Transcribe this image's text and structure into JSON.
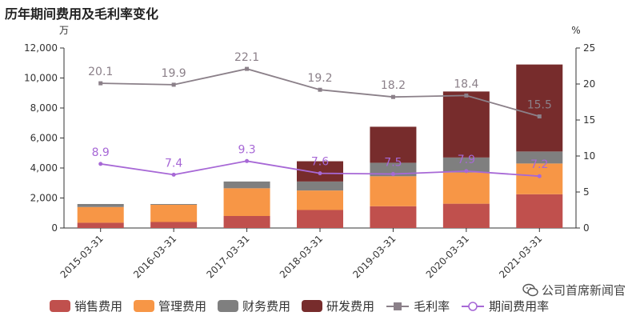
{
  "title": "历年期间费用及毛利率变化",
  "watermark": {
    "text": "公司首席新闻官",
    "icon": "wechat-icon"
  },
  "chart_data": {
    "type": "bar",
    "stacked": true,
    "categories": [
      "2015-03-31",
      "2016-03-31",
      "2017-03-31",
      "2018-03-31",
      "2019-03-31",
      "2020-03-31",
      "2021-03-31"
    ],
    "y_left": {
      "unit": "万",
      "range": [
        0,
        12000
      ],
      "ticks": [
        "0",
        "2,000",
        "4,000",
        "6,000",
        "8,000",
        "10,000",
        "12,000"
      ],
      "tick_values": [
        0,
        2000,
        4000,
        6000,
        8000,
        10000,
        12000
      ]
    },
    "y_right": {
      "unit": "%",
      "range": [
        0,
        25
      ],
      "ticks": [
        "0",
        "5",
        "10",
        "15",
        "20",
        "25"
      ],
      "tick_values": [
        0,
        5,
        10,
        15,
        20,
        25
      ]
    },
    "grid": false,
    "legend_position": "bottom",
    "series": [
      {
        "name": "销售费用",
        "kind": "bar",
        "color": "#c0504d",
        "values": [
          350,
          400,
          800,
          1200,
          1450,
          1620,
          2250
        ]
      },
      {
        "name": "管理费用",
        "kind": "bar",
        "color": "#f79646",
        "values": [
          1050,
          1150,
          1850,
          1300,
          2000,
          2080,
          2050
        ]
      },
      {
        "name": "财务费用",
        "kind": "bar",
        "color": "#7f7f7f",
        "values": [
          200,
          50,
          450,
          600,
          900,
          1000,
          800
        ]
      },
      {
        "name": "研发费用",
        "kind": "bar",
        "color": "#772c2c",
        "values": [
          0,
          0,
          0,
          1350,
          2400,
          4400,
          5800
        ]
      },
      {
        "name": "毛利率",
        "kind": "line",
        "axis": "right",
        "color": "#8b8089",
        "marker": "square",
        "values": [
          20.1,
          19.9,
          22.1,
          19.2,
          18.2,
          18.4,
          15.5
        ],
        "labels": [
          "20.1",
          "19.9",
          "22.1",
          "19.2",
          "18.2",
          "18.4",
          "15.5"
        ]
      },
      {
        "name": "期间费用率",
        "kind": "line",
        "axis": "right",
        "color": "#a768d6",
        "marker": "circle",
        "values": [
          8.9,
          7.4,
          9.3,
          7.6,
          7.5,
          7.9,
          7.2
        ],
        "labels": [
          "8.9",
          "7.4",
          "9.3",
          "7.6",
          "7.5",
          "7.9",
          "7.2"
        ]
      }
    ]
  }
}
